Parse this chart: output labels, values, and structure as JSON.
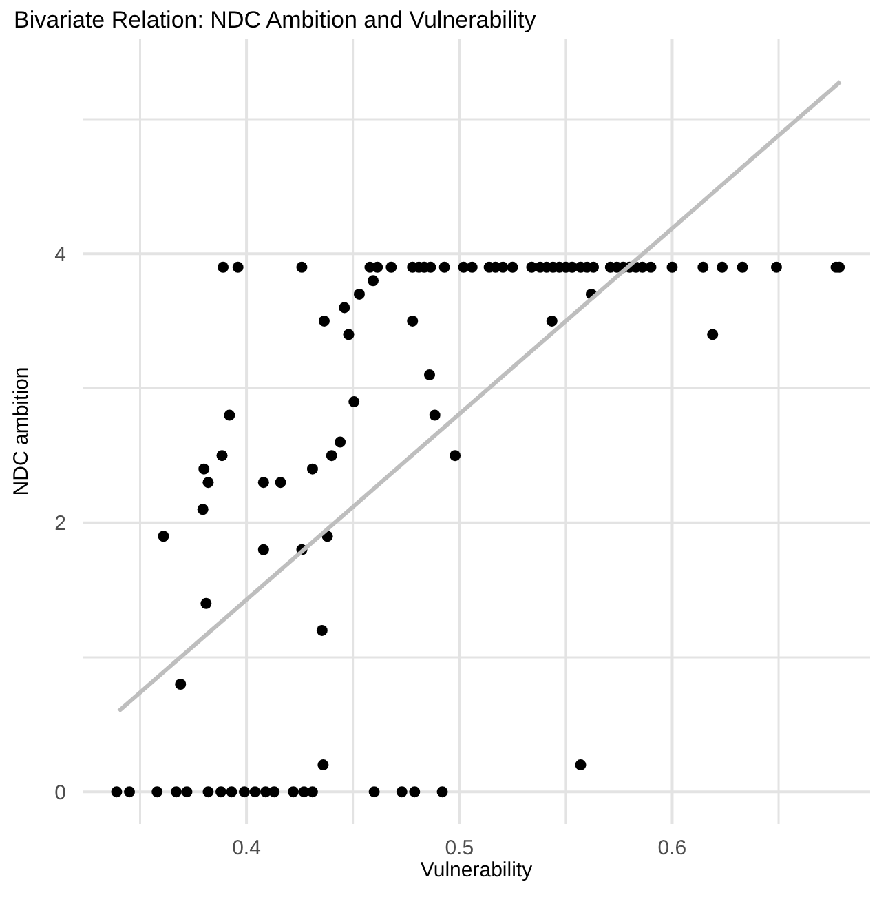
{
  "chart_data": {
    "type": "scatter",
    "title": "Bivariate Relation: NDC Ambition and Vulnerability",
    "xlabel": "Vulnerability",
    "ylabel": "NDC ambition",
    "xlim": [
      0.323,
      0.693
    ],
    "ylim": [
      -0.24,
      5.6
    ],
    "xticks": [
      {
        "value": 0.35,
        "label": null
      },
      0.4,
      {
        "value": 0.45,
        "label": null
      },
      0.5,
      {
        "value": 0.55,
        "label": null
      },
      0.6,
      {
        "value": 0.65,
        "label": null
      }
    ],
    "yticks": [
      0,
      {
        "value": 1,
        "label": null
      },
      2,
      {
        "value": 3,
        "label": null
      },
      4,
      {
        "value": 5,
        "label": null
      }
    ],
    "grid": true,
    "series": [
      {
        "marker": "circle",
        "color": "#000000",
        "x": [
          0.389,
          0.396,
          0.426,
          0.458,
          0.4615,
          0.468,
          0.478,
          0.481,
          0.4835,
          0.4865,
          0.493,
          0.502,
          0.506,
          0.514,
          0.517,
          0.5205,
          0.525,
          0.534,
          0.538,
          0.541,
          0.544,
          0.547,
          0.55,
          0.553,
          0.557,
          0.56,
          0.563,
          0.571,
          0.574,
          0.577,
          0.58,
          0.583,
          0.586,
          0.59,
          0.6,
          0.6145,
          0.6235,
          0.633,
          0.649,
          0.677,
          0.6785,
          0.4365,
          0.446,
          0.448,
          0.453,
          0.4595,
          0.478,
          0.5435,
          0.562,
          0.619,
          0.486,
          0.392,
          0.4885,
          0.3885,
          0.4505,
          0.498,
          0.44,
          0.38,
          0.382,
          0.408,
          0.416,
          0.431,
          0.444,
          0.3795,
          0.361,
          0.438,
          0.408,
          0.426,
          0.381,
          0.4355,
          0.369,
          0.436,
          0.557,
          0.339,
          0.345,
          0.358,
          0.367,
          0.372,
          0.382,
          0.388,
          0.393,
          0.399,
          0.404,
          0.409,
          0.413,
          0.422,
          0.427,
          0.431,
          0.46,
          0.473,
          0.479,
          0.492
        ],
        "values": [
          3.9,
          3.9,
          3.9,
          3.9,
          3.9,
          3.9,
          3.9,
          3.9,
          3.9,
          3.9,
          3.9,
          3.9,
          3.9,
          3.9,
          3.9,
          3.9,
          3.9,
          3.9,
          3.9,
          3.9,
          3.9,
          3.9,
          3.9,
          3.9,
          3.9,
          3.9,
          3.9,
          3.9,
          3.9,
          3.9,
          3.9,
          3.9,
          3.9,
          3.9,
          3.9,
          3.9,
          3.9,
          3.9,
          3.9,
          3.9,
          3.9,
          3.5,
          3.6,
          3.4,
          3.7,
          3.8,
          3.5,
          3.5,
          3.7,
          3.4,
          3.1,
          2.8,
          2.8,
          2.5,
          2.9,
          2.5,
          2.5,
          2.4,
          2.3,
          2.3,
          2.3,
          2.4,
          2.6,
          2.1,
          1.9,
          1.9,
          1.8,
          1.8,
          1.4,
          1.2,
          0.8,
          0.2,
          0.2,
          0,
          0,
          0,
          0,
          0,
          0,
          0,
          0,
          0,
          0,
          0,
          0,
          0,
          0,
          0,
          0,
          0,
          0,
          0
        ]
      },
      {
        "type": "line",
        "marker": "none",
        "color": "#bebebe",
        "x": [
          0.34,
          0.679
        ],
        "values": [
          0.6,
          5.28
        ]
      }
    ]
  }
}
